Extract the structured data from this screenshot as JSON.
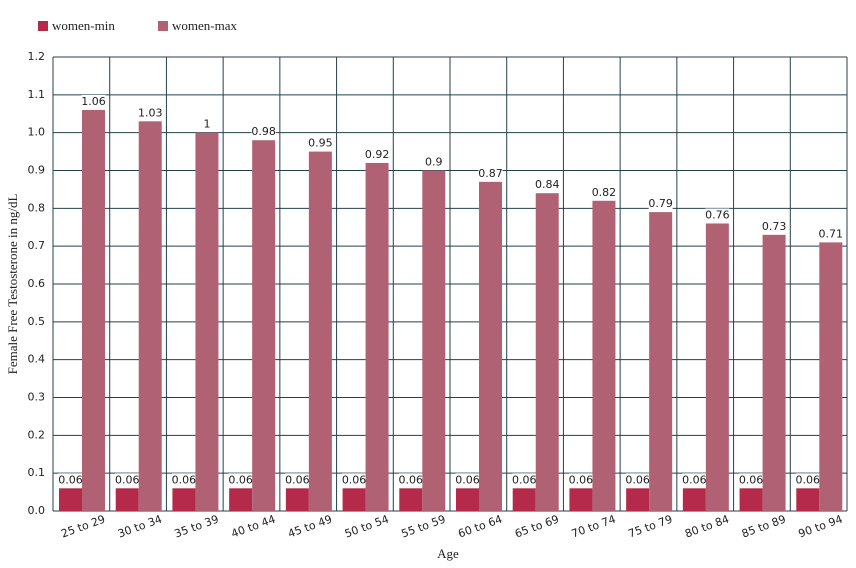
{
  "chart_data": {
    "type": "bar",
    "x_label": "Age",
    "y_label": "Female Free Testosterone in ng/dL",
    "categories": [
      "25 to 29",
      "30 to 34",
      "35 to 39",
      "40 to 44",
      "45 to 49",
      "50 to 54",
      "55 to 59",
      "60 to 64",
      "65 to 69",
      "70 to 74",
      "75 to 79",
      "80 to 84",
      "85 to 89",
      "90 to 94"
    ],
    "series": [
      {
        "name": "women-min",
        "color": "#b5294a",
        "values": [
          0.06,
          0.06,
          0.06,
          0.06,
          0.06,
          0.06,
          0.06,
          0.06,
          0.06,
          0.06,
          0.06,
          0.06,
          0.06,
          0.06
        ]
      },
      {
        "name": "women-max",
        "color": "#b06274",
        "values": [
          1.06,
          1.03,
          1,
          0.98,
          0.95,
          0.92,
          0.9,
          0.87,
          0.84,
          0.82,
          0.79,
          0.76,
          0.73,
          0.71
        ]
      }
    ],
    "ylim": [
      0,
      1.2
    ],
    "yticks": [
      {
        "value": 0,
        "label": "0.0"
      },
      0.1,
      0.2,
      0.3,
      0.4,
      0.5,
      0.6,
      0.7,
      0.8,
      0.9,
      {
        "value": 1,
        "label": "1.0"
      },
      1.1,
      1.2
    ],
    "grid": true,
    "legend": "top-left"
  }
}
